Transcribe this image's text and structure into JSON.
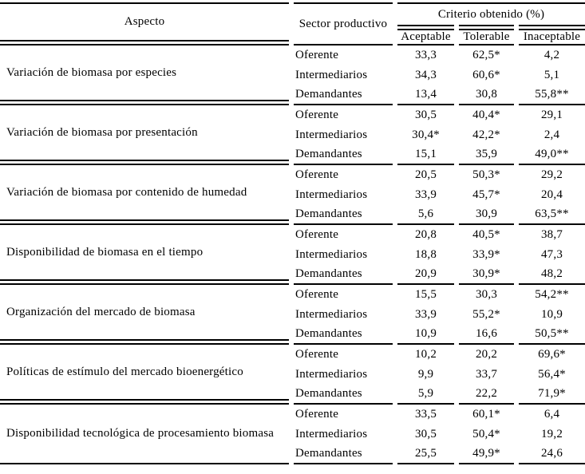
{
  "colors": {
    "text": "#000000",
    "background": "#ffffff",
    "rule": "#000000"
  },
  "table": {
    "headers": {
      "aspecto": "Aspecto",
      "sector": "Sector productivo",
      "criterio": "Criterio obtenido (%)",
      "subheaders": [
        "Aceptable",
        "Tolerable",
        "Inaceptable"
      ]
    },
    "groups": [
      {
        "aspecto": "Variación de biomasa por especies",
        "rows": [
          {
            "sector": "Oferente",
            "aceptable": "33,3",
            "tolerable": "62,5*",
            "inaceptable": "4,2"
          },
          {
            "sector": "Intermediarios",
            "aceptable": "34,3",
            "tolerable": "60,6*",
            "inaceptable": "5,1"
          },
          {
            "sector": "Demandantes",
            "aceptable": "13,4",
            "tolerable": "30,8",
            "inaceptable": "55,8**"
          }
        ]
      },
      {
        "aspecto": "Variación de biomasa por presentación",
        "rows": [
          {
            "sector": "Oferente",
            "aceptable": "30,5",
            "tolerable": "40,4*",
            "inaceptable": "29,1"
          },
          {
            "sector": "Intermediarios",
            "aceptable": "30,4*",
            "tolerable": "42,2*",
            "inaceptable": "2,4"
          },
          {
            "sector": "Demandantes",
            "aceptable": "15,1",
            "tolerable": "35,9",
            "inaceptable": "49,0**"
          }
        ]
      },
      {
        "aspecto": "Variación de biomasa por contenido de humedad",
        "rows": [
          {
            "sector": "Oferente",
            "aceptable": "20,5",
            "tolerable": "50,3*",
            "inaceptable": "29,2"
          },
          {
            "sector": "Intermediarios",
            "aceptable": "33,9",
            "tolerable": "45,7*",
            "inaceptable": "20,4"
          },
          {
            "sector": "Demandantes",
            "aceptable": "5,6",
            "tolerable": "30,9",
            "inaceptable": "63,5**"
          }
        ]
      },
      {
        "aspecto": "Disponibilidad de biomasa en el tiempo",
        "rows": [
          {
            "sector": "Oferente",
            "aceptable": "20,8",
            "tolerable": "40,5*",
            "inaceptable": "38,7"
          },
          {
            "sector": "Intermediarios",
            "aceptable": "18,8",
            "tolerable": "33,9*",
            "inaceptable": "47,3"
          },
          {
            "sector": "Demandantes",
            "aceptable": "20,9",
            "tolerable": "30,9*",
            "inaceptable": "48,2"
          }
        ]
      },
      {
        "aspecto": "Organización del mercado de biomasa",
        "rows": [
          {
            "sector": "Oferente",
            "aceptable": "15,5",
            "tolerable": "30,3",
            "inaceptable": "54,2**"
          },
          {
            "sector": "Intermediarios",
            "aceptable": "33,9",
            "tolerable": "55,2*",
            "inaceptable": "10,9"
          },
          {
            "sector": "Demandantes",
            "aceptable": "10,9",
            "tolerable": "16,6",
            "inaceptable": "50,5**"
          }
        ]
      },
      {
        "aspecto": "Políticas de estímulo del mercado bioenergético",
        "rows": [
          {
            "sector": "Oferente",
            "aceptable": "10,2",
            "tolerable": "20,2",
            "inaceptable": "69,6*"
          },
          {
            "sector": "Intermediarios",
            "aceptable": "9,9",
            "tolerable": "33,7",
            "inaceptable": "56,4*"
          },
          {
            "sector": "Demandantes",
            "aceptable": "5,9",
            "tolerable": "22,2",
            "inaceptable": "71,9*"
          }
        ]
      },
      {
        "aspecto": "Disponibilidad tecnológica de procesamiento biomasa",
        "rows": [
          {
            "sector": "Oferente",
            "aceptable": "33,5",
            "tolerable": "60,1*",
            "inaceptable": "6,4"
          },
          {
            "sector": "Intermediarios",
            "aceptable": "30,5",
            "tolerable": "50,4*",
            "inaceptable": "19,2"
          },
          {
            "sector": "Demandantes",
            "aceptable": "25,5",
            "tolerable": "49,9*",
            "inaceptable": "24,6"
          }
        ]
      }
    ]
  }
}
